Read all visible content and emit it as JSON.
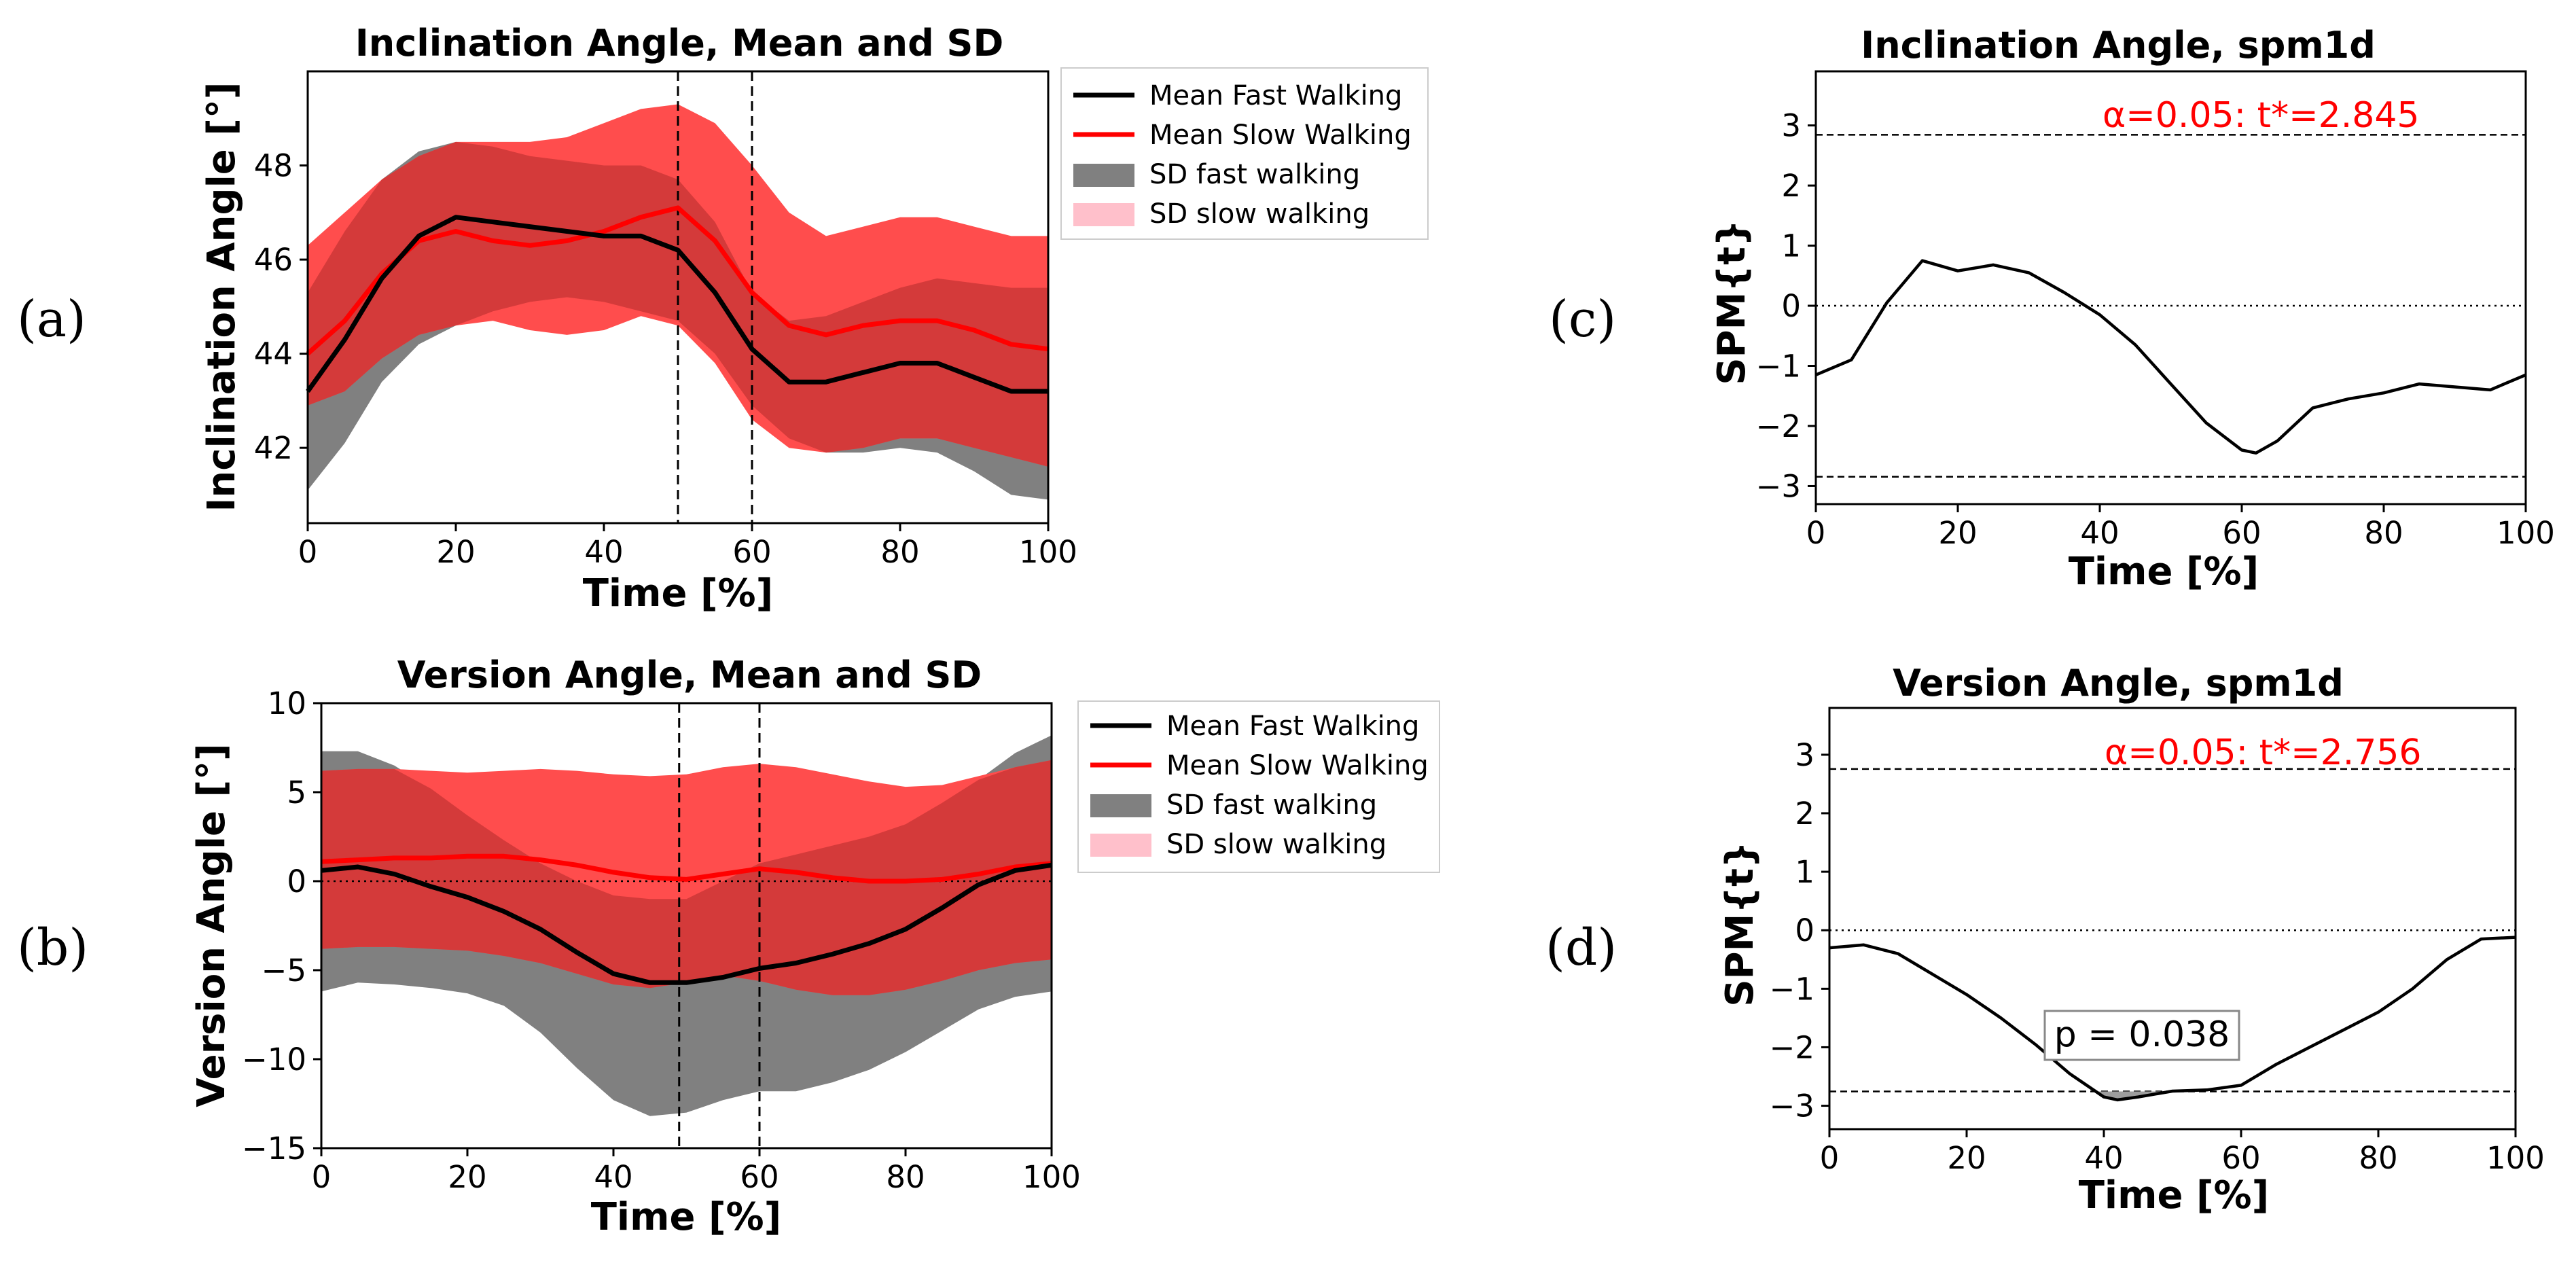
{
  "panel_labels": {
    "a": "(a)",
    "b": "(b)",
    "c": "(c)",
    "d": "(d)"
  },
  "colors": {
    "mean_fast": "#000000",
    "mean_slow": "#ff0000",
    "sd_fast": "#808080",
    "sd_slow": "#ff4d4d",
    "sd_overlap": "#d43a3a",
    "threshold_text": "#ff0000"
  },
  "chart_data": [
    {
      "id": "a",
      "type": "area",
      "title": "Inclination Angle, Mean and SD",
      "xlabel": "Time [%]",
      "ylabel": "Inclination Angle  [°]",
      "xlim": [
        0,
        100
      ],
      "ylim": [
        40.4,
        50
      ],
      "xticks": [
        0,
        20,
        40,
        60,
        80,
        100
      ],
      "yticks": [
        42,
        44,
        46,
        48
      ],
      "vlines": [
        50,
        60
      ],
      "legend_position": "outside-right",
      "legend": [
        "Mean Fast Walking",
        "Mean Slow Walking",
        "SD fast walking",
        "SD slow walking"
      ],
      "x": [
        0,
        5,
        10,
        15,
        20,
        25,
        30,
        35,
        40,
        45,
        50,
        55,
        60,
        65,
        70,
        75,
        80,
        85,
        90,
        95,
        100
      ],
      "series": [
        {
          "name": "Mean Fast Walking",
          "values": [
            43.2,
            44.3,
            45.6,
            46.5,
            46.9,
            46.8,
            46.7,
            46.6,
            46.5,
            46.5,
            46.2,
            45.3,
            44.1,
            43.4,
            43.4,
            43.6,
            43.8,
            43.8,
            43.5,
            43.2,
            43.2
          ]
        },
        {
          "name": "Mean Slow Walking",
          "values": [
            44.0,
            44.7,
            45.7,
            46.4,
            46.6,
            46.4,
            46.3,
            46.4,
            46.6,
            46.9,
            47.1,
            46.4,
            45.3,
            44.6,
            44.4,
            44.6,
            44.7,
            44.7,
            44.5,
            44.2,
            44.1
          ]
        },
        {
          "name": "SD fast walking",
          "lower": [
            41.1,
            42.1,
            43.4,
            44.2,
            44.6,
            44.9,
            45.1,
            45.2,
            45.1,
            44.9,
            44.7,
            44.0,
            42.9,
            42.2,
            41.9,
            41.9,
            42.0,
            41.9,
            41.5,
            41.0,
            40.9
          ],
          "upper": [
            45.3,
            46.6,
            47.7,
            48.3,
            48.5,
            48.4,
            48.2,
            48.1,
            48.0,
            48.0,
            47.7,
            46.8,
            45.3,
            44.7,
            44.8,
            45.1,
            45.4,
            45.6,
            45.5,
            45.4,
            45.4
          ]
        },
        {
          "name": "SD slow walking",
          "lower": [
            42.9,
            43.2,
            43.9,
            44.4,
            44.6,
            44.7,
            44.5,
            44.4,
            44.5,
            44.8,
            44.6,
            43.8,
            42.6,
            42.0,
            41.9,
            42.0,
            42.2,
            42.2,
            42.0,
            41.8,
            41.6
          ],
          "upper": [
            46.3,
            47.0,
            47.7,
            48.2,
            48.5,
            48.5,
            48.5,
            48.6,
            48.9,
            49.2,
            49.3,
            48.9,
            48.0,
            47.0,
            46.5,
            46.7,
            46.9,
            46.9,
            46.7,
            46.5,
            46.5
          ]
        }
      ]
    },
    {
      "id": "b",
      "type": "area",
      "title": "Version Angle, Mean and SD",
      "xlabel": "Time [%]",
      "ylabel": "Version Angle  [°]",
      "xlim": [
        0,
        100
      ],
      "ylim": [
        -15,
        10
      ],
      "xticks": [
        0,
        20,
        40,
        60,
        80,
        100
      ],
      "yticks": [
        -15,
        -10,
        -5,
        0,
        5,
        10
      ],
      "hline_dotted": 0,
      "vlines": [
        49,
        60
      ],
      "legend_position": "outside-right",
      "legend": [
        "Mean Fast Walking",
        "Mean Slow Walking",
        "SD fast walking",
        "SD slow walking"
      ],
      "x": [
        0,
        5,
        10,
        15,
        20,
        25,
        30,
        35,
        40,
        45,
        50,
        55,
        60,
        65,
        70,
        75,
        80,
        85,
        90,
        95,
        100
      ],
      "series": [
        {
          "name": "Mean Fast Walking",
          "values": [
            0.6,
            0.8,
            0.4,
            -0.3,
            -0.9,
            -1.7,
            -2.7,
            -4.0,
            -5.2,
            -5.7,
            -5.7,
            -5.4,
            -4.9,
            -4.6,
            -4.1,
            -3.5,
            -2.7,
            -1.5,
            -0.2,
            0.6,
            0.9
          ]
        },
        {
          "name": "Mean Slow Walking",
          "values": [
            1.1,
            1.2,
            1.3,
            1.3,
            1.4,
            1.4,
            1.2,
            0.9,
            0.5,
            0.2,
            0.1,
            0.4,
            0.7,
            0.5,
            0.2,
            0.0,
            0.0,
            0.1,
            0.4,
            0.8,
            1.0
          ]
        },
        {
          "name": "SD fast walking",
          "lower": [
            -6.2,
            -5.7,
            -5.8,
            -6.0,
            -6.3,
            -7.0,
            -8.5,
            -10.5,
            -12.3,
            -13.2,
            -13.0,
            -12.3,
            -11.8,
            -11.8,
            -11.3,
            -10.6,
            -9.6,
            -8.4,
            -7.2,
            -6.5,
            -6.2
          ],
          "upper": [
            7.3,
            7.3,
            6.5,
            5.2,
            3.7,
            2.3,
            1.0,
            0.0,
            -0.8,
            -1.0,
            -1.0,
            0.0,
            1.0,
            1.5,
            2.0,
            2.5,
            3.2,
            4.4,
            5.7,
            7.2,
            8.2
          ]
        },
        {
          "name": "SD slow walking",
          "lower": [
            -3.8,
            -3.7,
            -3.7,
            -3.8,
            -3.9,
            -4.2,
            -4.6,
            -5.2,
            -5.8,
            -6.0,
            -5.7,
            -5.3,
            -5.6,
            -6.1,
            -6.4,
            -6.4,
            -6.1,
            -5.6,
            -5.0,
            -4.6,
            -4.4
          ],
          "upper": [
            6.2,
            6.3,
            6.3,
            6.2,
            6.1,
            6.2,
            6.3,
            6.2,
            6.0,
            5.9,
            6.0,
            6.4,
            6.6,
            6.4,
            6.0,
            5.6,
            5.3,
            5.4,
            5.9,
            6.4,
            6.8
          ]
        }
      ]
    },
    {
      "id": "c",
      "type": "line",
      "title": "Inclination Angle, spm1d",
      "xlabel": "Time [%]",
      "ylabel": "SPM{t}",
      "xlim": [
        0,
        100
      ],
      "ylim": [
        -3.3,
        3.9
      ],
      "xticks": [
        0,
        20,
        40,
        60,
        80,
        100
      ],
      "yticks": [
        -3,
        -2,
        -1,
        0,
        1,
        2,
        3
      ],
      "threshold": 2.845,
      "threshold_label": "α=0.05:  t*=2.845",
      "x": [
        0,
        5,
        10,
        15,
        20,
        25,
        30,
        35,
        40,
        45,
        50,
        55,
        60,
        62,
        65,
        70,
        75,
        80,
        85,
        90,
        95,
        100
      ],
      "series": [
        {
          "name": "SPM{t}",
          "values": [
            -1.15,
            -0.9,
            0.05,
            0.75,
            0.58,
            0.68,
            0.55,
            0.22,
            -0.15,
            -0.65,
            -1.3,
            -1.95,
            -2.4,
            -2.45,
            -2.25,
            -1.7,
            -1.55,
            -1.45,
            -1.3,
            -1.35,
            -1.4,
            -1.15
          ]
        }
      ]
    },
    {
      "id": "d",
      "type": "line",
      "title": "Version Angle, spm1d",
      "xlabel": "Time [%]",
      "ylabel": "SPM{t}",
      "xlim": [
        0,
        100
      ],
      "ylim": [
        -3.4,
        3.8
      ],
      "xticks": [
        0,
        20,
        40,
        60,
        80,
        100
      ],
      "yticks": [
        -3,
        -2,
        -1,
        0,
        1,
        2,
        3
      ],
      "threshold": 2.756,
      "threshold_label": "α=0.05:  t*=2.756",
      "cluster_p": "p = 0.038",
      "x": [
        0,
        5,
        10,
        15,
        20,
        25,
        30,
        35,
        40,
        42,
        45,
        50,
        55,
        60,
        65,
        70,
        75,
        80,
        85,
        90,
        95,
        100
      ],
      "series": [
        {
          "name": "SPM{t}",
          "values": [
            -0.3,
            -0.25,
            -0.4,
            -0.75,
            -1.1,
            -1.5,
            -1.95,
            -2.45,
            -2.85,
            -2.9,
            -2.85,
            -2.75,
            -2.73,
            -2.65,
            -2.3,
            -2.0,
            -1.7,
            -1.4,
            -1.0,
            -0.5,
            -0.15,
            -0.12
          ]
        }
      ]
    }
  ]
}
